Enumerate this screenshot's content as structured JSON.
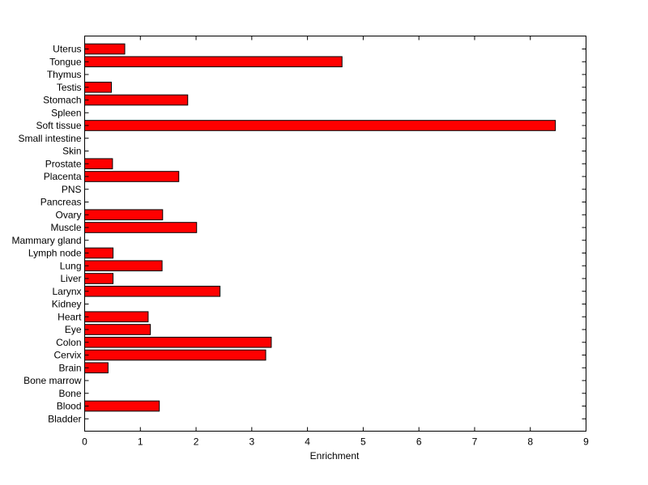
{
  "chart_data": {
    "type": "bar",
    "orientation": "horizontal",
    "categories": [
      "Uterus",
      "Tongue",
      "Thymus",
      "Testis",
      "Stomach",
      "Spleen",
      "Soft tissue",
      "Small intestine",
      "Skin",
      "Prostate",
      "Placenta",
      "PNS",
      "Pancreas",
      "Ovary",
      "Muscle",
      "Mammary gland",
      "Lymph node",
      "Lung",
      "Liver",
      "Larynx",
      "Kidney",
      "Heart",
      "Eye",
      "Colon",
      "Cervix",
      "Brain",
      "Bone marrow",
      "Bone",
      "Blood",
      "Bladder"
    ],
    "values": [
      0.72,
      4.62,
      0,
      0.48,
      1.85,
      0,
      8.45,
      0,
      0,
      0.5,
      1.69,
      0,
      0,
      1.4,
      2.01,
      0,
      0.51,
      1.39,
      0.51,
      2.43,
      0,
      1.14,
      1.18,
      3.35,
      3.25,
      0.42,
      0,
      0,
      1.34,
      0
    ],
    "title": "",
    "xlabel": "Enrichment",
    "ylabel": "",
    "xlim": [
      0,
      9
    ],
    "xticks": [
      "0",
      "1",
      "2",
      "3",
      "4",
      "5",
      "6",
      "7",
      "8",
      "9"
    ],
    "bar_color": "#ff0000",
    "grid": false,
    "legend": "none"
  }
}
